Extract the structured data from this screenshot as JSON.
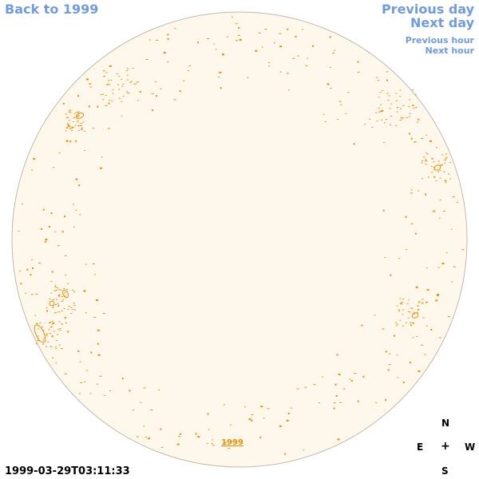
{
  "nav": {
    "back": "Back to 1999",
    "previous_day": "Previous day",
    "next_day": "Next day",
    "previous_hour": "Previous hour",
    "next_hour": "Next hour"
  },
  "disk_year_label": "1999",
  "timestamp": "1999-03-29T03:11:33",
  "compass": {
    "north": "N",
    "east": "E",
    "center": "+",
    "west": "W",
    "south": "S"
  },
  "colors": {
    "link": "#6f9be3",
    "disk_fill": "#fef8ec",
    "disk_border": "#c4b9a8",
    "feature": "#f08c00"
  }
}
